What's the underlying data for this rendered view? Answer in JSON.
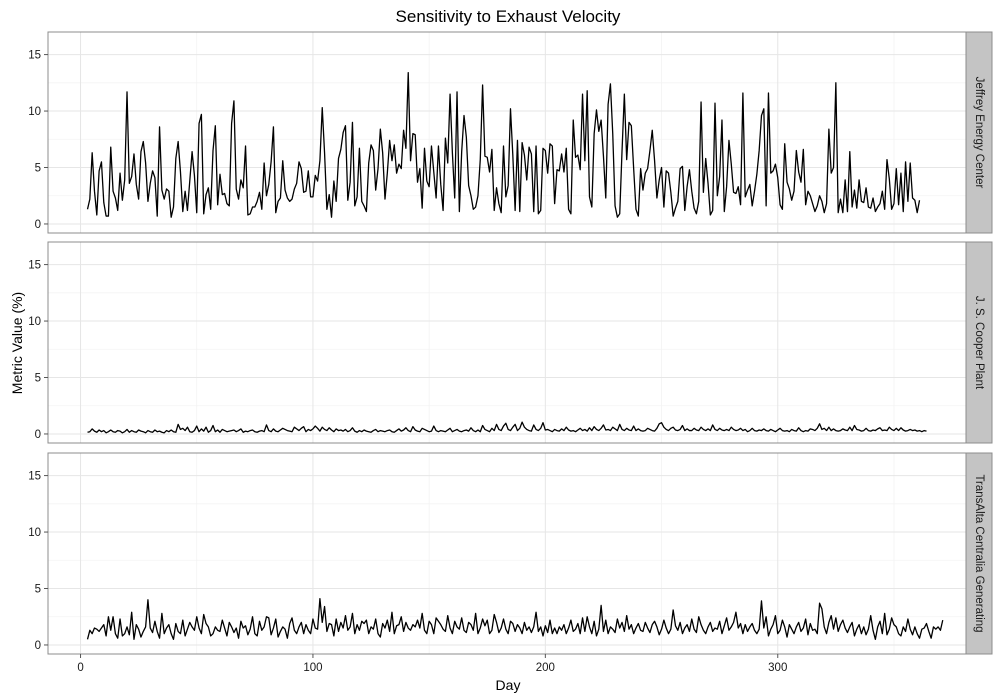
{
  "chart_data": {
    "type": "line",
    "title": "Sensitivity to Exhaust Velocity",
    "xlabel": "Day",
    "ylabel": "Metric Value (%)",
    "xlim": [
      -14,
      381
    ],
    "ylim": [
      -0.8,
      17
    ],
    "xticks": [
      0,
      100,
      200,
      300
    ],
    "yticks": [
      0,
      5,
      10,
      15
    ],
    "grid": true,
    "facets": [
      {
        "label": "Jeffrey Energy Center",
        "x_start": 3,
        "values": [
          1.3,
          2.2,
          6.3,
          2.9,
          0.8,
          4.7,
          5.5,
          1.9,
          0.7,
          0.7,
          6.8,
          2.9,
          2.3,
          1.2,
          4.5,
          2.1,
          3.9,
          11.7,
          3.6,
          4.2,
          6.2,
          3.5,
          2.2,
          6.4,
          7.3,
          5.4,
          2.0,
          3.6,
          4.7,
          4.1,
          0.7,
          8.6,
          3.0,
          2.2,
          3.1,
          2.9,
          0.6,
          1.5,
          5.8,
          7.3,
          4.6,
          1.1,
          2.9,
          1.2,
          3.8,
          6.4,
          4.3,
          1.0,
          8.9,
          9.7,
          0.9,
          2.6,
          3.2,
          1.3,
          6.5,
          8.7,
          1.7,
          4.4,
          2.6,
          2.7,
          1.8,
          1.6,
          8.9,
          10.9,
          3.1,
          2.2,
          3.9,
          3.2,
          6.9,
          0.8,
          0.9,
          1.5,
          1.5,
          2.0,
          2.8,
          1.3,
          5.4,
          2.5,
          3.5,
          5.5,
          8.6,
          1.0,
          2.0,
          2.3,
          5.6,
          3.0,
          2.3,
          2.0,
          2.2,
          3.1,
          3.6,
          5.5,
          4.9,
          2.8,
          2.9,
          4.7,
          2.4,
          2.4,
          4.3,
          3.8,
          5.6,
          10.3,
          6.3,
          1.3,
          2.6,
          0.6,
          3.8,
          2.0,
          5.8,
          6.6,
          8.1,
          8.7,
          2.1,
          3.7,
          9.0,
          1.6,
          2.4,
          6.7,
          2.0,
          1.6,
          1.1,
          5.4,
          7.0,
          6.5,
          3.0,
          4.9,
          8.4,
          6.3,
          2.2,
          4.5,
          7.4,
          5.6,
          7.0,
          4.5,
          5.3,
          4.9,
          8.3,
          6.7,
          13.4,
          5.6,
          8.0,
          7.9,
          3.7,
          4.9,
          1.4,
          6.7,
          3.8,
          3.3,
          6.9,
          4.6,
          2.3,
          6.9,
          3.5,
          1.2,
          7.6,
          5.4,
          11.5,
          6.3,
          2.3,
          11.7,
          1.1,
          6.4,
          9.6,
          7.7,
          3.4,
          2.5,
          1.3,
          1.5,
          2.5,
          5.7,
          12.3,
          6.0,
          5.9,
          4.6,
          6.6,
          1.2,
          3.2,
          1.8,
          1.0,
          6.9,
          2.4,
          3.4,
          10.2,
          6.1,
          1.2,
          7.4,
          1.1,
          7.2,
          6.1,
          3.9,
          6.8,
          6.2,
          1.1,
          6.9,
          0.9,
          1.2,
          6.7,
          6.5,
          4.5,
          7.1,
          6.9,
          1.8,
          4.8,
          4.7,
          6.2,
          4.6,
          6.7,
          1.3,
          0.9,
          9.2,
          5.9,
          6.1,
          4.8,
          11.5,
          5.6,
          11.8,
          2.4,
          1.5,
          8.0,
          10.1,
          8.2,
          9.2,
          6.0,
          2.3,
          10.6,
          12.4,
          8.0,
          1.6,
          0.6,
          0.9,
          6.5,
          11.5,
          5.7,
          9.0,
          8.7,
          4.9,
          1.3,
          0.7,
          4.9,
          3.0,
          4.5,
          4.9,
          6.5,
          8.3,
          5.6,
          2.3,
          3.9,
          5.0,
          1.5,
          4.7,
          4.5,
          2.8,
          0.7,
          1.4,
          2.0,
          4.9,
          5.1,
          1.2,
          3.3,
          4.8,
          2.9,
          1.4,
          0.9,
          2.0,
          10.8,
          2.8,
          5.8,
          3.6,
          0.8,
          1.2,
          10.7,
          2.5,
          4.2,
          9.2,
          1.1,
          3.3,
          7.4,
          5.3,
          2.8,
          2.7,
          3.3,
          1.7,
          11.6,
          2.4,
          3.0,
          3.5,
          1.6,
          2.9,
          4.4,
          6.5,
          9.6,
          10.2,
          1.6,
          11.6,
          4.5,
          4.7,
          5.3,
          4.1,
          1.7,
          1.3,
          7.1,
          3.7,
          3.1,
          2.1,
          2.9,
          6.5,
          4.6,
          3.7,
          6.6,
          1.7,
          2.9,
          2.5,
          1.8,
          1.1,
          1.6,
          2.5,
          2.0,
          1.0,
          1.8,
          8.4,
          4.5,
          5.0,
          12.5,
          1.0,
          2.2,
          1.0,
          3.9,
          1.1,
          6.4,
          1.5,
          3.0,
          1.4,
          3.9,
          2.0,
          1.9,
          3.2,
          1.5,
          1.4,
          2.3,
          1.1,
          1.5,
          1.8,
          2.9,
          1.3,
          5.7,
          4.0,
          1.3,
          1.8,
          4.9,
          1.7,
          4.5,
          1.1,
          5.5,
          2.0,
          5.4,
          2.3,
          2.1,
          1.0,
          2.1
        ]
      },
      {
        "label": "J. S. Cooper Plant",
        "x_start": 3,
        "values": [
          0.15,
          0.2,
          0.45,
          0.25,
          0.15,
          0.35,
          0.2,
          0.3,
          0.1,
          0.2,
          0.35,
          0.2,
          0.15,
          0.3,
          0.25,
          0.1,
          0.2,
          0.4,
          0.15,
          0.3,
          0.2,
          0.15,
          0.35,
          0.25,
          0.2,
          0.1,
          0.3,
          0.2,
          0.15,
          0.35,
          0.2,
          0.25,
          0.15,
          0.1,
          0.3,
          0.2,
          0.35,
          0.2,
          0.15,
          0.85,
          0.4,
          0.5,
          0.3,
          0.6,
          0.2,
          0.15,
          0.3,
          0.7,
          0.2,
          0.45,
          0.25,
          0.6,
          0.15,
          0.3,
          0.75,
          0.2,
          0.35,
          0.15,
          0.4,
          0.3,
          0.2,
          0.25,
          0.3,
          0.35,
          0.2,
          0.3,
          0.45,
          0.15,
          0.25,
          0.2,
          0.3,
          0.35,
          0.2,
          0.15,
          0.25,
          0.3,
          0.2,
          0.8,
          0.3,
          0.2,
          0.45,
          0.25,
          0.2,
          0.35,
          0.5,
          0.4,
          0.3,
          0.25,
          0.2,
          0.6,
          0.45,
          0.3,
          0.5,
          0.65,
          0.2,
          0.4,
          0.3,
          0.45,
          0.7,
          0.5,
          0.25,
          0.6,
          0.4,
          0.3,
          0.55,
          0.35,
          0.2,
          0.45,
          0.3,
          0.35,
          0.25,
          0.4,
          0.2,
          0.3,
          0.55,
          0.25,
          0.15,
          0.3,
          0.2,
          0.35,
          0.25,
          0.2,
          0.15,
          0.3,
          0.4,
          0.2,
          0.3,
          0.25,
          0.2,
          0.3,
          0.35,
          0.2,
          0.15,
          0.3,
          0.45,
          0.25,
          0.35,
          0.55,
          0.3,
          0.2,
          0.65,
          0.35,
          0.25,
          0.2,
          0.5,
          0.4,
          0.3,
          0.2,
          0.25,
          0.7,
          0.3,
          0.2,
          0.3,
          0.25,
          0.2,
          0.35,
          0.5,
          0.2,
          0.3,
          0.4,
          0.25,
          0.2,
          0.3,
          0.35,
          0.25,
          0.55,
          0.3,
          0.2,
          0.35,
          0.2,
          0.75,
          0.4,
          0.3,
          0.2,
          0.5,
          0.3,
          0.85,
          0.4,
          0.3,
          0.7,
          0.95,
          0.4,
          0.3,
          0.6,
          0.85,
          0.3,
          0.5,
          1.05,
          0.6,
          0.4,
          0.3,
          0.25,
          0.8,
          0.4,
          0.3,
          0.5,
          1.0,
          0.35,
          0.4,
          0.3,
          0.2,
          0.4,
          0.3,
          0.25,
          0.45,
          0.3,
          0.6,
          0.35,
          0.25,
          0.3,
          0.2,
          0.35,
          0.5,
          0.3,
          0.4,
          0.25,
          0.55,
          0.3,
          0.65,
          0.4,
          0.3,
          0.5,
          0.8,
          0.35,
          0.4,
          0.3,
          0.6,
          0.45,
          0.3,
          0.85,
          0.4,
          0.3,
          0.5,
          0.35,
          0.3,
          0.7,
          0.3,
          0.45,
          0.3,
          0.25,
          0.3,
          0.5,
          0.4,
          0.3,
          0.25,
          0.5,
          0.9,
          1.0,
          0.6,
          0.4,
          0.3,
          0.5,
          0.6,
          0.35,
          0.3,
          0.4,
          0.75,
          0.3,
          0.45,
          0.3,
          0.3,
          0.5,
          0.35,
          0.3,
          0.6,
          0.4,
          0.3,
          0.45,
          0.3,
          0.8,
          0.4,
          0.3,
          0.5,
          0.35,
          0.3,
          0.4,
          0.3,
          0.6,
          0.4,
          0.3,
          0.35,
          0.5,
          0.3,
          0.4,
          0.2,
          0.3,
          0.5,
          0.3,
          0.25,
          0.35,
          0.3,
          0.45,
          0.3,
          0.25,
          0.4,
          0.3,
          0.2,
          0.35,
          0.5,
          0.3,
          0.25,
          0.3,
          0.2,
          0.4,
          0.3,
          0.25,
          0.55,
          0.3,
          0.2,
          0.3,
          0.25,
          0.45,
          0.4,
          0.3,
          0.5,
          0.9,
          0.4,
          0.5,
          0.3,
          0.6,
          0.3,
          0.45,
          0.3,
          0.25,
          0.3,
          0.45,
          0.35,
          0.3,
          0.6,
          0.3,
          0.75,
          0.4,
          0.35,
          0.25,
          0.3,
          0.5,
          0.3,
          0.25,
          0.35,
          0.3,
          0.45,
          0.55,
          0.3,
          0.35,
          0.3,
          0.6,
          0.4,
          0.3,
          0.5,
          0.3,
          0.55,
          0.35,
          0.25,
          0.3,
          0.4,
          0.3,
          0.35,
          0.25,
          0.3,
          0.2,
          0.3,
          0.25
        ]
      },
      {
        "label": "TransAlta Centralia Generating",
        "x_start": 3,
        "values": [
          0.5,
          1.3,
          1.0,
          1.5,
          1.4,
          1.2,
          1.5,
          1.8,
          0.8,
          2.5,
          1.3,
          2.5,
          1.0,
          0.6,
          2.3,
          0.8,
          1.0,
          1.6,
          0.9,
          2.9,
          0.5,
          1.8,
          1.4,
          0.7,
          1.2,
          1.6,
          4.0,
          1.5,
          1.1,
          2.1,
          1.2,
          0.6,
          2.8,
          1.0,
          1.5,
          1.8,
          1.0,
          0.5,
          1.9,
          1.2,
          1.0,
          2.2,
          0.8,
          1.4,
          2.0,
          1.6,
          1.3,
          2.5,
          1.5,
          1.0,
          2.7,
          1.9,
          1.6,
          0.8,
          1.0,
          1.6,
          1.3,
          1.2,
          2.2,
          1.5,
          0.8,
          2.0,
          1.6,
          1.1,
          1.5,
          0.6,
          2.1,
          1.5,
          1.7,
          0.9,
          1.4,
          2.5,
          1.0,
          0.8,
          2.1,
          1.3,
          1.6,
          2.5,
          2.4,
          0.9,
          1.5,
          2.3,
          0.7,
          1.2,
          1.6,
          1.4,
          0.6,
          1.9,
          2.4,
          1.3,
          1.0,
          1.6,
          2.0,
          1.0,
          1.8,
          1.3,
          1.0,
          2.3,
          1.5,
          1.4,
          4.1,
          2.0,
          3.4,
          1.2,
          1.9,
          1.8,
          0.8,
          2.3,
          1.2,
          2.0,
          1.5,
          2.6,
          1.3,
          1.6,
          2.8,
          1.0,
          1.8,
          1.3,
          2.1,
          1.9,
          2.2,
          1.0,
          1.6,
          1.4,
          2.3,
          1.0,
          0.7,
          1.9,
          1.5,
          2.2,
          1.2,
          2.9,
          1.0,
          1.7,
          1.8,
          2.5,
          1.2,
          2.0,
          1.5,
          1.3,
          1.8,
          1.6,
          2.2,
          1.5,
          2.8,
          1.3,
          1.0,
          2.1,
          1.8,
          1.0,
          2.4,
          2.1,
          1.8,
          1.4,
          1.2,
          2.6,
          1.5,
          1.0,
          2.1,
          1.6,
          1.4,
          2.4,
          1.3,
          1.1,
          2.0,
          1.8,
          1.3,
          2.8,
          1.0,
          1.5,
          2.3,
          1.7,
          2.2,
          1.0,
          1.3,
          2.7,
          2.0,
          1.1,
          1.5,
          2.3,
          1.4,
          1.0,
          2.1,
          1.9,
          1.2,
          1.8,
          1.5,
          1.0,
          2.0,
          1.3,
          1.6,
          1.1,
          1.6,
          2.9,
          1.2,
          1.6,
          0.8,
          1.7,
          1.1,
          2.2,
          1.0,
          1.5,
          1.0,
          1.6,
          1.3,
          1.8,
          1.0,
          1.5,
          2.2,
          1.2,
          1.4,
          1.9,
          1.0,
          2.4,
          1.2,
          2.5,
          1.6,
          1.0,
          2.1,
          0.8,
          1.4,
          3.5,
          1.2,
          2.2,
          1.0,
          1.6,
          1.4,
          1.1,
          2.3,
          1.5,
          2.0,
          1.2,
          2.6,
          1.4,
          1.8,
          1.0,
          1.5,
          1.9,
          1.3,
          1.2,
          2.0,
          1.5,
          1.1,
          1.8,
          2.1,
          1.6,
          0.9,
          1.4,
          2.2,
          1.5,
          1.0,
          1.4,
          3.1,
          1.7,
          1.3,
          2.0,
          1.0,
          1.5,
          1.8,
          1.2,
          2.3,
          1.4,
          1.1,
          2.5,
          1.8,
          1.3,
          1.0,
          1.6,
          2.0,
          1.2,
          1.5,
          1.4,
          2.1,
          1.0,
          1.7,
          2.4,
          1.3,
          1.6,
          2.0,
          2.9,
          1.5,
          1.9,
          1.0,
          1.8,
          1.2,
          1.6,
          1.9,
          1.3,
          1.0,
          1.4,
          3.9,
          1.5,
          2.5,
          0.8,
          1.4,
          1.8,
          2.6,
          1.0,
          1.3,
          2.2,
          1.6,
          0.7,
          1.8,
          1.4,
          1.0,
          1.6,
          2.0,
          1.2,
          1.5,
          2.3,
          0.9,
          1.9,
          1.3,
          1.4,
          1.0,
          3.7,
          3.2,
          1.6,
          1.0,
          2.0,
          2.6,
          1.4,
          2.4,
          1.2,
          1.8,
          2.2,
          1.5,
          1.1,
          1.6,
          2.0,
          0.8,
          1.4,
          1.8,
          1.0,
          1.6,
          0.9,
          1.4,
          2.6,
          1.3,
          0.5,
          1.6,
          2.1,
          1.0,
          2.8,
          0.9,
          1.4,
          2.4,
          1.8,
          1.6,
          1.0,
          0.8,
          1.6,
          1.2,
          2.3,
          1.4,
          0.9,
          1.6,
          1.0,
          0.6,
          1.4,
          1.5,
          1.9,
          1.2,
          0.6,
          1.6,
          1.4,
          1.6,
          1.3,
          2.2
        ]
      }
    ]
  }
}
